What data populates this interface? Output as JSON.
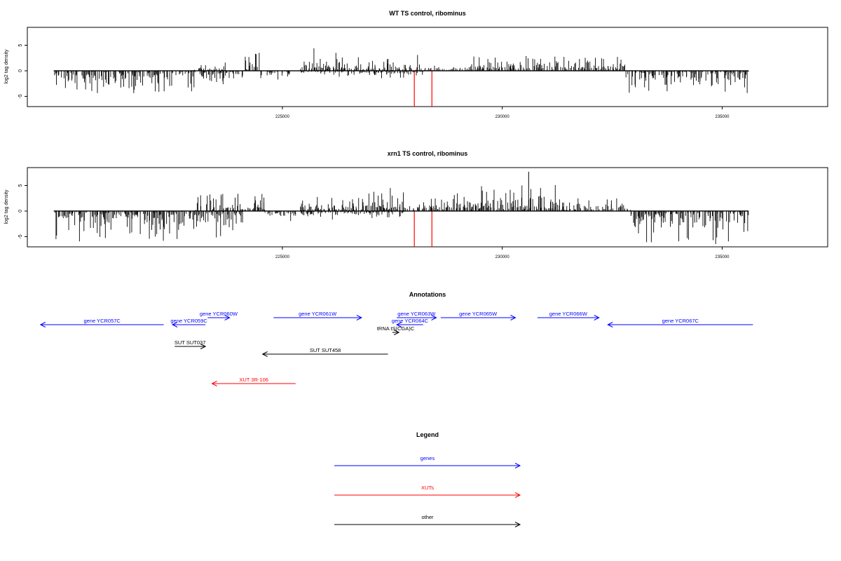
{
  "chart_data": [
    {
      "type": "bar",
      "title": "WT TS control, ribominus",
      "ylabel": "log2 tag density",
      "xlim": [
        219200,
        237400
      ],
      "ylim": [
        -7,
        8.5
      ],
      "xticks": [
        225000,
        230000,
        235000
      ],
      "yticks": [
        -5,
        0,
        5
      ],
      "ytick_labels": [
        "-5",
        "0",
        "5"
      ],
      "bar_color": "#000000",
      "highlight_color": "#ff0000",
      "highlights": [
        {
          "x": 228000,
          "y": -7
        },
        {
          "x": 228400,
          "y": -7
        }
      ],
      "segments": [
        {
          "from": 219800,
          "to": 222500,
          "sign": -1,
          "amp": 2.8,
          "max": 4.5
        },
        {
          "from": 222500,
          "to": 223000,
          "sign": -1,
          "amp": 2.6,
          "max": 4.8
        },
        {
          "from": 223000,
          "to": 223100,
          "sign": 1,
          "amp": 0.5,
          "max": 1.5
        },
        {
          "from": 223100,
          "to": 223700,
          "sign": 1,
          "amp": 0.9,
          "max": 3.5
        },
        {
          "from": 223100,
          "to": 223700,
          "sign": -1,
          "amp": 1.5,
          "max": 3
        },
        {
          "from": 223700,
          "to": 224100,
          "sign": -1,
          "amp": 1.0,
          "max": 2
        },
        {
          "from": 224100,
          "to": 224500,
          "sign": 1,
          "amp": 1.6,
          "max": 3.8
        },
        {
          "from": 224500,
          "to": 225200,
          "sign": -1,
          "amp": 0.8,
          "max": 1.8
        },
        {
          "from": 225400,
          "to": 227100,
          "sign": 1,
          "amp": 1.6,
          "max": 4.5
        },
        {
          "from": 225400,
          "to": 227100,
          "sign": -1,
          "amp": 0.6,
          "max": 1.2
        },
        {
          "from": 227100,
          "to": 228200,
          "sign": 1,
          "amp": 1.8,
          "max": 5.2
        },
        {
          "from": 227100,
          "to": 228200,
          "sign": -1,
          "amp": 0.8,
          "max": 1.5
        },
        {
          "from": 228200,
          "to": 228800,
          "sign": 1,
          "amp": 0.6,
          "max": 1.5
        },
        {
          "from": 228800,
          "to": 229200,
          "sign": 1,
          "amp": 0.5,
          "max": 1.0
        },
        {
          "from": 229200,
          "to": 231800,
          "sign": 1,
          "amp": 1.6,
          "max": 4.5
        },
        {
          "from": 231800,
          "to": 232800,
          "sign": 1,
          "amp": 1.4,
          "max": 3.2
        },
        {
          "from": 232800,
          "to": 235600,
          "sign": -1,
          "amp": 2.2,
          "max": 4.5
        }
      ]
    },
    {
      "type": "bar",
      "title": "xrn1 TS control, ribominus",
      "ylabel": "log2 tag density",
      "xlim": [
        219200,
        237400
      ],
      "ylim": [
        -7,
        8.5
      ],
      "xticks": [
        225000,
        230000,
        235000
      ],
      "yticks": [
        -5,
        0,
        5
      ],
      "ytick_labels": [
        "-5",
        "0",
        "5"
      ],
      "bar_color": "#000000",
      "highlight_color": "#ff0000",
      "highlights": [
        {
          "x": 228000,
          "y": -7
        },
        {
          "x": 228400,
          "y": -7
        }
      ],
      "segments": [
        {
          "from": 219800,
          "to": 222500,
          "sign": -1,
          "amp": 3.2,
          "max": 6
        },
        {
          "from": 222500,
          "to": 223000,
          "sign": -1,
          "amp": 3.0,
          "max": 5.5
        },
        {
          "from": 223000,
          "to": 223700,
          "sign": 1,
          "amp": 2.0,
          "max": 4.8
        },
        {
          "from": 223000,
          "to": 223700,
          "sign": -1,
          "amp": 2.8,
          "max": 5.5
        },
        {
          "from": 223700,
          "to": 224100,
          "sign": -1,
          "amp": 2.4,
          "max": 4
        },
        {
          "from": 223700,
          "to": 224100,
          "sign": 1,
          "amp": 1.6,
          "max": 3.5
        },
        {
          "from": 224100,
          "to": 224600,
          "sign": 1,
          "amp": 2.2,
          "max": 5.3
        },
        {
          "from": 224600,
          "to": 225400,
          "sign": -1,
          "amp": 0.8,
          "max": 2.0
        },
        {
          "from": 225400,
          "to": 227000,
          "sign": 1,
          "amp": 2.0,
          "max": 4.5
        },
        {
          "from": 225400,
          "to": 227000,
          "sign": -1,
          "amp": 0.8,
          "max": 3.8
        },
        {
          "from": 227000,
          "to": 227800,
          "sign": 1,
          "amp": 2.0,
          "max": 4.8
        },
        {
          "from": 227000,
          "to": 227800,
          "sign": -1,
          "amp": 0.8,
          "max": 1.5
        },
        {
          "from": 227800,
          "to": 228800,
          "sign": 1,
          "amp": 1.2,
          "max": 2.5
        },
        {
          "from": 228800,
          "to": 229800,
          "sign": 1,
          "amp": 2.2,
          "max": 5
        },
        {
          "from": 229800,
          "to": 231200,
          "sign": 1,
          "amp": 2.6,
          "max": 6.0
        },
        {
          "from": 231200,
          "to": 232900,
          "sign": 1,
          "amp": 1.2,
          "max": 2.5
        },
        {
          "from": 232900,
          "to": 235600,
          "sign": -1,
          "amp": 2.8,
          "max": 6.5
        }
      ],
      "peaks": [
        {
          "x": 230600,
          "y": 7.7
        }
      ]
    }
  ],
  "annotations": {
    "title": "Annotations",
    "features": [
      {
        "label": "gene YCR057C",
        "from": 219500,
        "to": 222300,
        "dir": "left",
        "kind": "gene",
        "level": 1
      },
      {
        "label": "gene YCR059C",
        "from": 222500,
        "to": 223250,
        "dir": "left",
        "kind": "gene",
        "level": 2
      },
      {
        "label": "gene YCR060W",
        "from": 223300,
        "to": 223800,
        "dir": "right",
        "kind": "gene",
        "level": 3
      },
      {
        "label": "gene YCR061W",
        "from": 224800,
        "to": 226800,
        "dir": "right",
        "kind": "gene",
        "level": 3
      },
      {
        "label": "gene YCR063W",
        "from": 227600,
        "to": 228500,
        "dir": "right",
        "kind": "gene",
        "level": 3
      },
      {
        "label": "gene YCR064C",
        "from": 227600,
        "to": 228200,
        "dir": "left",
        "kind": "gene",
        "level": 4
      },
      {
        "label": "tRNA tS(CGA)C",
        "from": 227500,
        "to": 227650,
        "dir": "right",
        "kind": "other",
        "level": 5
      },
      {
        "label": "gene YCR065W",
        "from": 228600,
        "to": 230300,
        "dir": "right",
        "kind": "gene",
        "level": 3
      },
      {
        "label": "gene YCR066W",
        "from": 230800,
        "to": 232200,
        "dir": "right",
        "kind": "gene",
        "level": 3
      },
      {
        "label": "gene YCR067C",
        "from": 232400,
        "to": 235700,
        "dir": "left",
        "kind": "gene",
        "level": 1
      },
      {
        "label": "SUT SUT037",
        "from": 222550,
        "to": 223250,
        "dir": "right",
        "kind": "other",
        "level": 6
      },
      {
        "label": "SUT SUT458",
        "from": 224550,
        "to": 227400,
        "dir": "left",
        "kind": "other",
        "level": 7
      },
      {
        "label": "XUT 3R-106",
        "from": 223400,
        "to": 225300,
        "dir": "left",
        "kind": "xut",
        "level": 8
      }
    ]
  },
  "legend": {
    "title": "Legend",
    "items": [
      {
        "label": "genes",
        "kind": "gene"
      },
      {
        "label": "XUTs",
        "kind": "xut"
      },
      {
        "label": "other",
        "kind": "other"
      }
    ]
  },
  "colors": {
    "gene": "#0000ff",
    "xut": "#ff0000",
    "other": "#000000"
  }
}
